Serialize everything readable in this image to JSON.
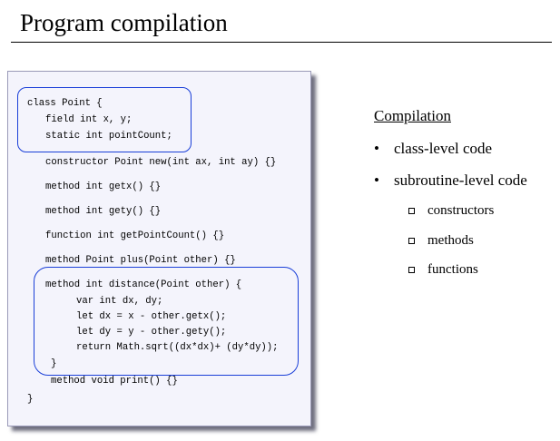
{
  "title": "Program compilation",
  "code_lines": [
    "class Point {",
    "field int x, y;",
    "static int pointCount;",
    "constructor Point new(int ax, int ay) {}",
    "method int getx() {}",
    "method int gety() {}",
    "function int getPointCount() {}",
    "method Point plus(Point other) {}",
    "method int distance(Point other) {",
    "var int dx, dy;",
    "let dx = x - other.getx();",
    "let dy = y - other.gety();",
    "return Math.sqrt((dx*dx)+ (dy*dy));",
    "}",
    "method void print() {}",
    "}"
  ],
  "compilation": {
    "heading": "Compilation",
    "bullets": [
      "class-level code",
      "subroutine-level code"
    ],
    "subitems": [
      "constructors",
      "methods",
      "functions"
    ]
  },
  "colors": {
    "highlight": "#1a3fd8",
    "code_background": "#f4f4fc"
  }
}
